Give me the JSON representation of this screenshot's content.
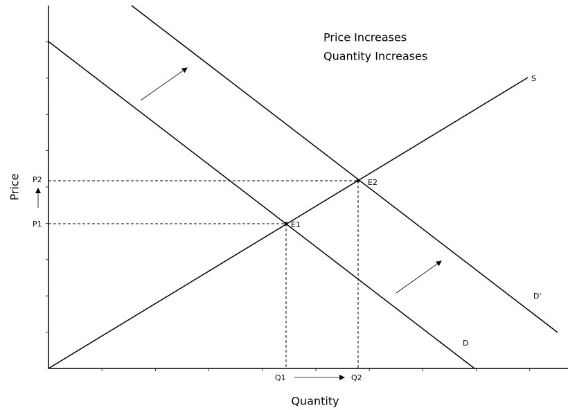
{
  "header": {
    "lines": [
      "Price Increases",
      "Quantity Increases"
    ]
  },
  "axes": {
    "x_label": "Quantity",
    "y_label": "Price"
  },
  "curves": [
    {
      "label": "S"
    },
    {
      "label": "D'"
    },
    {
      "label": "D"
    }
  ],
  "points": [
    {
      "label": "E1"
    },
    {
      "label": "E2"
    }
  ],
  "price_levels": [
    "P1",
    "P2"
  ],
  "quantity_levels": [
    "Q1",
    "Q2"
  ]
}
